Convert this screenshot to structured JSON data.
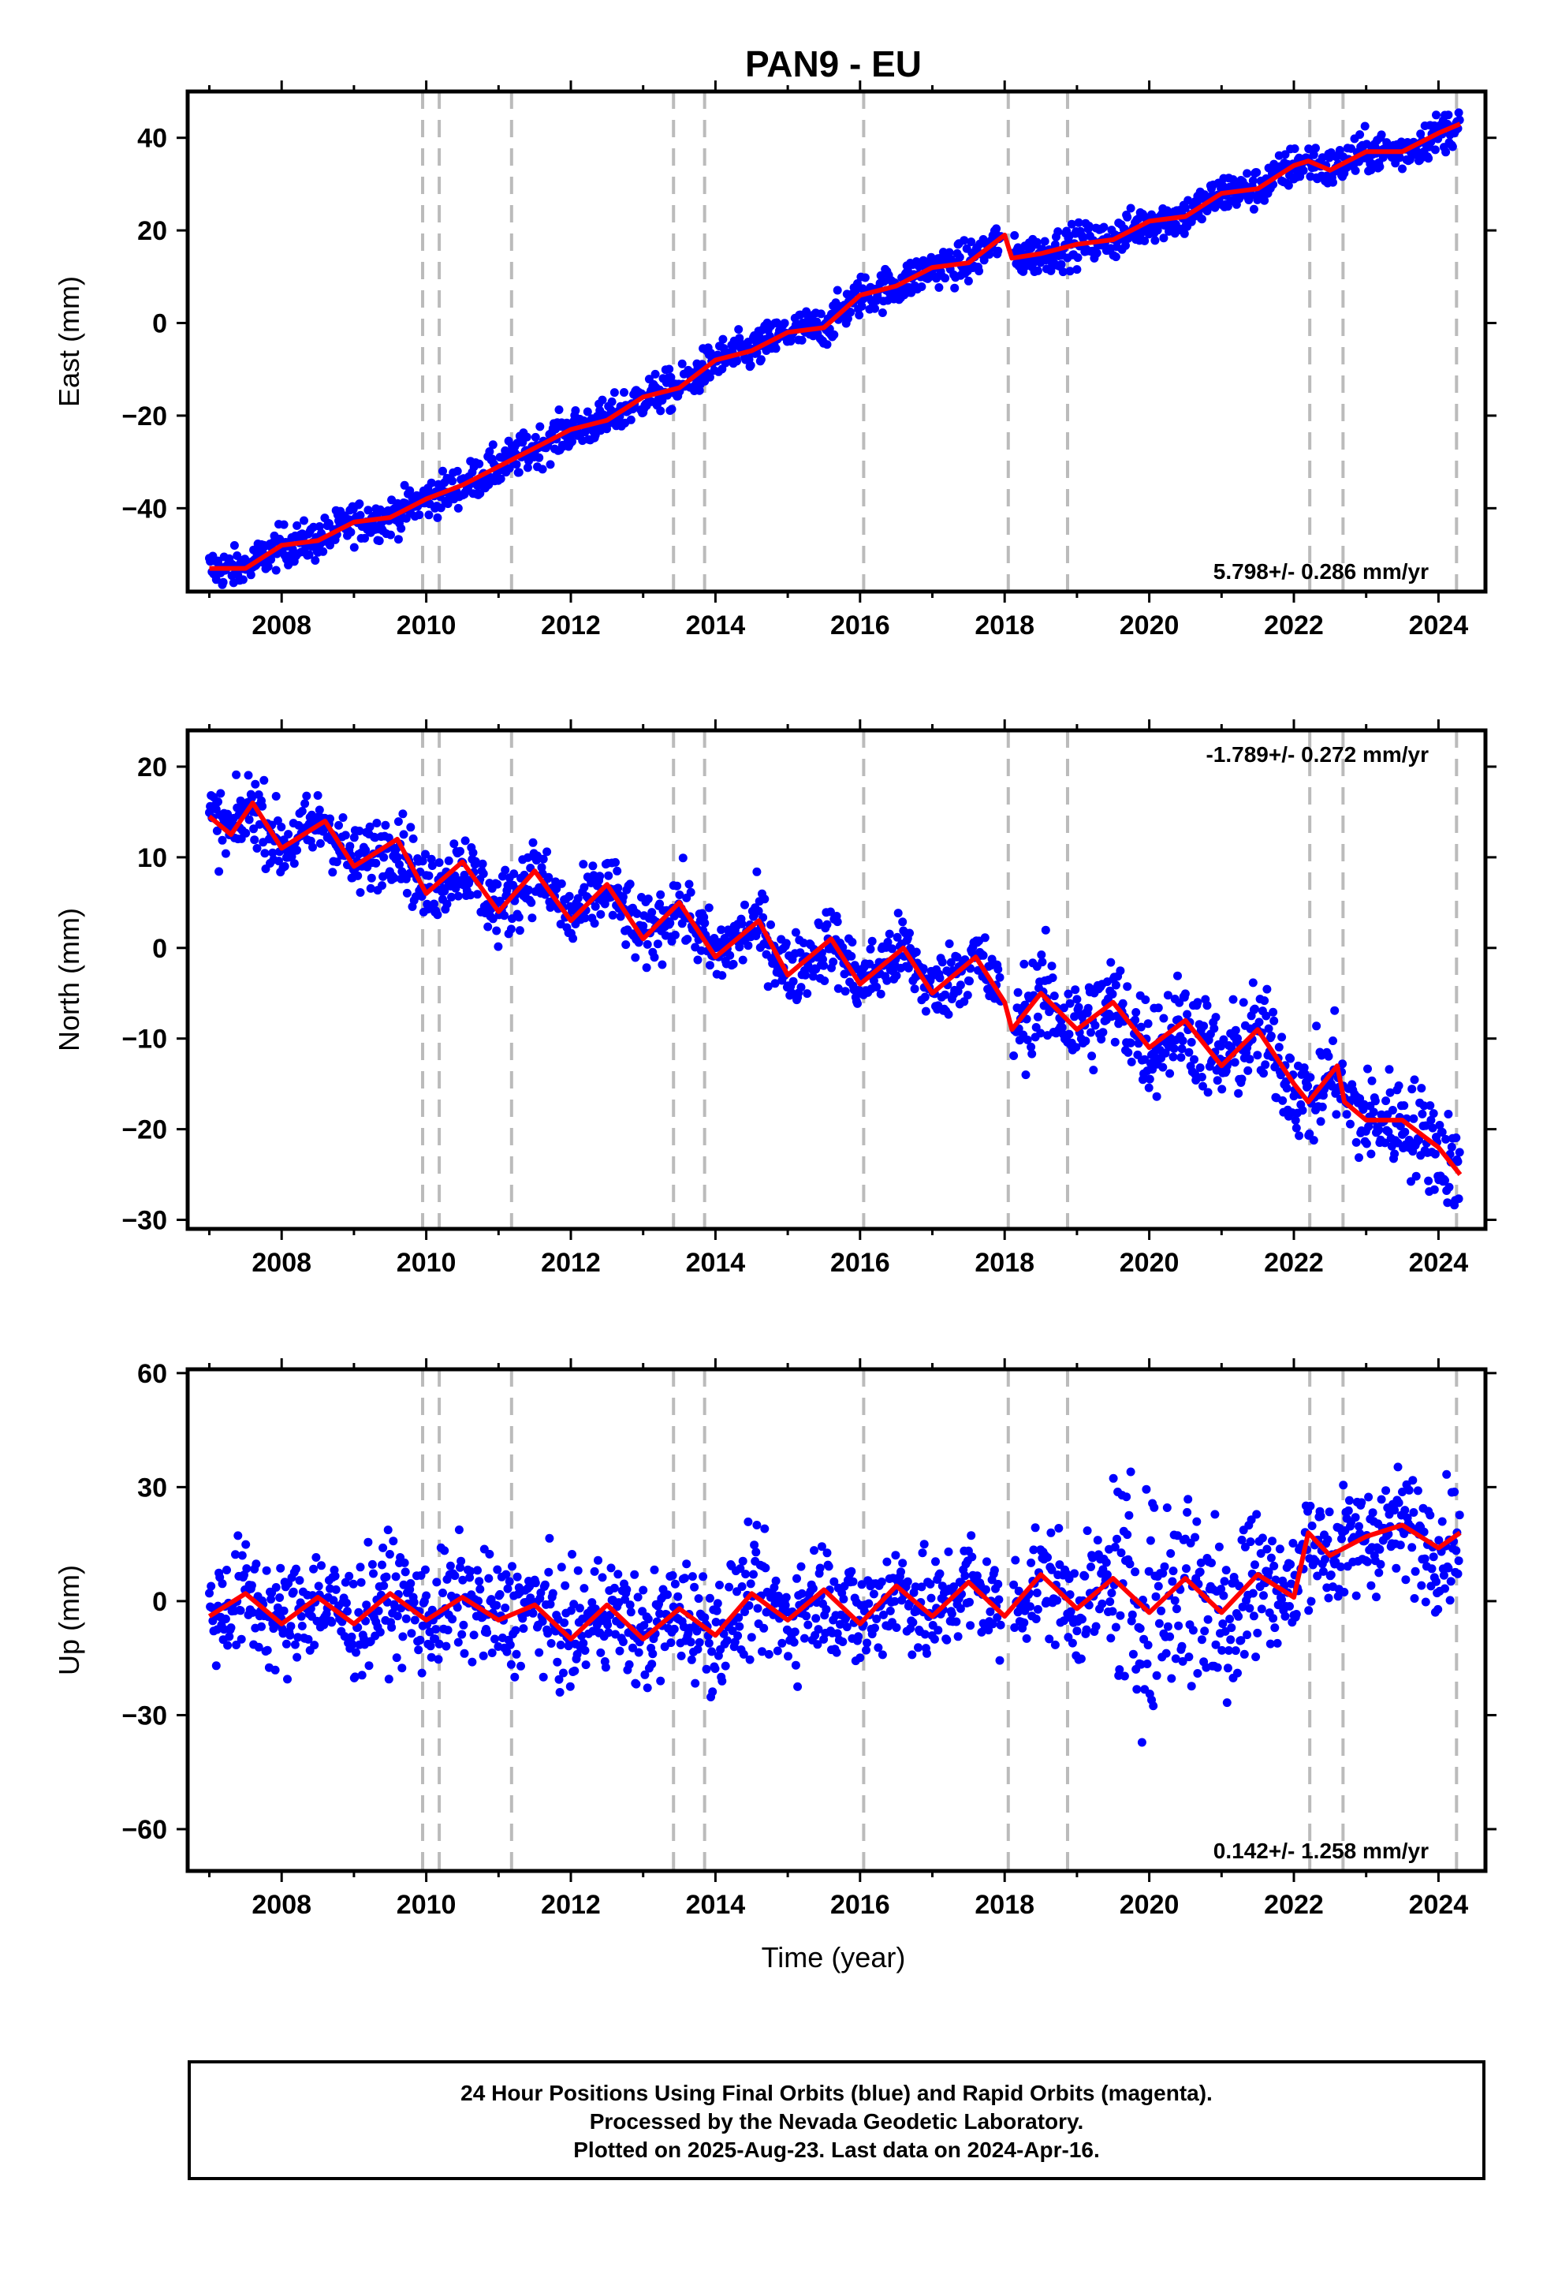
{
  "chart_data": {
    "type": "scatter",
    "title": "PAN9 - EU",
    "xlabel": "Time (year)",
    "xlim": [
      2006.7,
      2024.65
    ],
    "x_ticks": [
      "2008",
      "2010",
      "2012",
      "2014",
      "2016",
      "2018",
      "2020",
      "2022",
      "2024"
    ],
    "event_lines": [
      2009.95,
      2010.18,
      2011.18,
      2013.42,
      2013.85,
      2016.05,
      2018.05,
      2018.87,
      2022.22,
      2022.68,
      2024.25
    ],
    "colors": {
      "data": "#0000ff",
      "model": "#ff0000",
      "event_line": "#bbbbbb"
    },
    "panels": [
      {
        "ylabel": "East (mm)",
        "ylim": [
          -58,
          50
        ],
        "y_ticks": [
          "−40",
          "−20",
          "0",
          "20",
          "40"
        ],
        "rate_text": "5.798+/- 0.286 mm/yr",
        "rate_position": "bottom-right",
        "series": [
          {
            "type": "line",
            "x": [
              2007.0,
              2007.5,
              2008.0,
              2008.5,
              2009.0,
              2009.5,
              2010.0,
              2010.5,
              2011.0,
              2011.5,
              2012.0,
              2012.5,
              2013.0,
              2013.5,
              2014.0,
              2014.5,
              2015.0,
              2015.5,
              2016.0,
              2016.5,
              2017.0,
              2017.5,
              2018.0,
              2018.1,
              2018.5,
              2019.0,
              2019.5,
              2020.0,
              2020.5,
              2021.0,
              2021.5,
              2022.0,
              2022.2,
              2022.5,
              2023.0,
              2023.5,
              2024.0,
              2024.3
            ],
            "y": [
              -53,
              -53,
              -48,
              -47,
              -43,
              -42,
              -38,
              -35,
              -31,
              -27,
              -23,
              -21,
              -16,
              -14,
              -8,
              -6,
              -2,
              -1,
              6,
              8,
              12,
              13,
              19,
              14,
              15,
              17,
              18,
              22,
              23,
              28,
              29,
              34,
              35,
              33,
              37,
              37,
              41,
              43
            ]
          }
        ]
      },
      {
        "ylabel": "North (mm)",
        "ylim": [
          -31,
          24
        ],
        "y_ticks": [
          "20",
          "10",
          "0",
          "−10",
          "−20",
          "−30"
        ],
        "rate_text": "-1.789+/- 0.272 mm/yr",
        "rate_position": "top-right",
        "series": [
          {
            "type": "line",
            "x": [
              2007.0,
              2007.3,
              2007.6,
              2008.0,
              2008.6,
              2009.0,
              2009.6,
              2010.0,
              2010.5,
              2011.0,
              2011.5,
              2012.0,
              2012.5,
              2013.0,
              2013.5,
              2014.0,
              2014.6,
              2015.0,
              2015.6,
              2016.0,
              2016.6,
              2017.0,
              2017.6,
              2018.0,
              2018.1,
              2018.5,
              2019.0,
              2019.5,
              2020.0,
              2020.5,
              2021.0,
              2021.5,
              2022.0,
              2022.2,
              2022.6,
              2022.7,
              2023.0,
              2023.5,
              2024.0,
              2024.3
            ],
            "y": [
              14.5,
              12.5,
              16,
              11,
              14,
              9,
              12,
              6,
              9.5,
              4,
              8.5,
              3,
              7,
              1,
              5,
              -1,
              3,
              -3,
              1,
              -4,
              0,
              -5,
              -1,
              -6,
              -9,
              -5,
              -9,
              -6,
              -11,
              -8,
              -13,
              -9,
              -15,
              -17,
              -13,
              -17,
              -19,
              -19,
              -22,
              -25
            ]
          }
        ]
      },
      {
        "ylabel": "Up (mm)",
        "ylim": [
          -71,
          61
        ],
        "y_ticks": [
          "60",
          "30",
          "0",
          "−30",
          "−60"
        ],
        "rate_text": "0.142+/- 1.258 mm/yr",
        "rate_position": "bottom-right",
        "series": [
          {
            "type": "line",
            "x": [
              2007.0,
              2007.5,
              2008.0,
              2008.5,
              2009.0,
              2009.5,
              2010.0,
              2010.5,
              2011.0,
              2011.5,
              2012.0,
              2012.5,
              2013.0,
              2013.5,
              2014.0,
              2014.5,
              2015.0,
              2015.5,
              2016.0,
              2016.5,
              2017.0,
              2017.5,
              2018.0,
              2018.5,
              2019.0,
              2019.5,
              2020.0,
              2020.5,
              2021.0,
              2021.5,
              2022.0,
              2022.2,
              2022.5,
              2023.0,
              2023.5,
              2024.0,
              2024.3
            ],
            "y": [
              -4,
              2,
              -6,
              1,
              -6,
              2,
              -5,
              1,
              -5,
              -1,
              -10,
              -1,
              -10,
              -2,
              -9,
              2,
              -5,
              3,
              -6,
              4,
              -4,
              5,
              -4,
              7,
              -2,
              6,
              -3,
              6,
              -3,
              7,
              1,
              18,
              12,
              17,
              20,
              14,
              18
            ]
          }
        ]
      }
    ]
  },
  "footer": {
    "line1": "24 Hour Positions Using Final Orbits (blue) and Rapid Orbits (magenta).",
    "line2": "Processed by the Nevada Geodetic Laboratory.",
    "line3": "Plotted on 2025-Aug-23. Last data on 2024-Apr-16."
  }
}
